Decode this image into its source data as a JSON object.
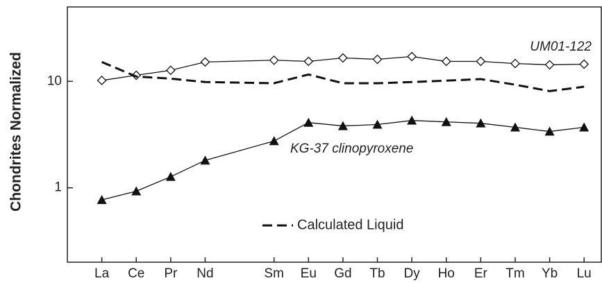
{
  "chart_data": {
    "type": "line",
    "y_label": "Chondrites Normalized",
    "x": [
      57,
      58,
      59,
      60,
      62,
      63,
      64,
      65,
      66,
      67,
      68,
      69,
      70,
      71
    ],
    "xlim": [
      56,
      71.5
    ],
    "xticks": [
      {
        "value": 57,
        "label": "La"
      },
      {
        "value": 58,
        "label": "Ce"
      },
      {
        "value": 59,
        "label": "Pr"
      },
      {
        "value": 60,
        "label": "Nd"
      },
      {
        "value": 62,
        "label": "Sm"
      },
      {
        "value": 63,
        "label": "Eu"
      },
      {
        "value": 64,
        "label": "Gd"
      },
      {
        "value": 65,
        "label": "Tb"
      },
      {
        "value": 66,
        "label": "Dy"
      },
      {
        "value": 67,
        "label": "Ho"
      },
      {
        "value": 68,
        "label": "Er"
      },
      {
        "value": 69,
        "label": "Tm"
      },
      {
        "value": 70,
        "label": "Yb"
      },
      {
        "value": 71,
        "label": "Lu"
      }
    ],
    "ylim": [
      0.2,
      50
    ],
    "yticks": [
      1,
      10
    ],
    "log_y": true,
    "legend": "bottom",
    "series": [
      {
        "name": "UM01-122",
        "color": "#111111",
        "marker": "diamond",
        "dashed": false,
        "values": [
          10.2,
          11.4,
          12.7,
          15.2,
          15.8,
          15.4,
          16.6,
          16.1,
          17.1,
          15.4,
          15.4,
          14.7,
          14.3,
          14.5
        ]
      },
      {
        "name": "KG-37 clinopyroxene",
        "color": "#111111",
        "marker": "triangle",
        "dashed": false,
        "values": [
          0.77,
          0.93,
          1.27,
          1.81,
          2.75,
          4.1,
          3.81,
          3.93,
          4.29,
          4.16,
          4.04,
          3.7,
          3.38,
          3.7
        ]
      },
      {
        "name": "Calculated Liquid",
        "color": "#111111",
        "marker": "none",
        "dashed": true,
        "values": [
          15.2,
          11.1,
          10.6,
          9.85,
          9.6,
          11.6,
          9.6,
          9.6,
          9.85,
          10.15,
          10.5,
          9.3,
          8.1,
          8.9
        ]
      }
    ]
  }
}
